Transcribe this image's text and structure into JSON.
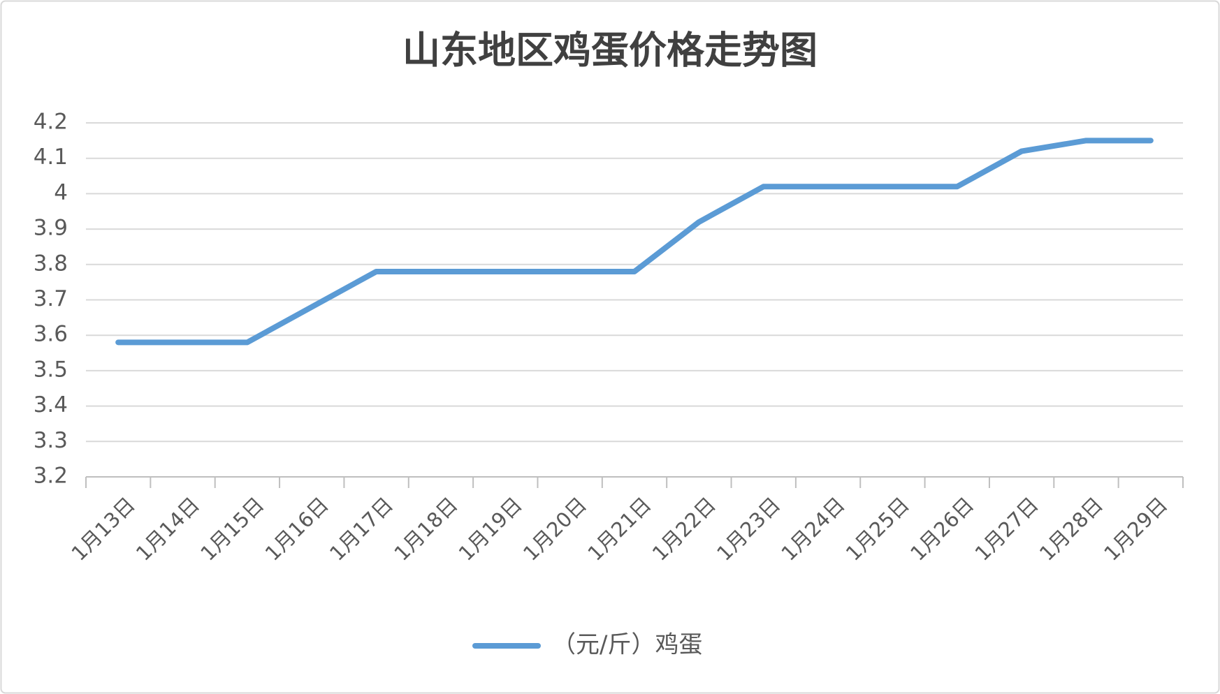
{
  "chart_data": {
    "type": "line",
    "title": "山东地区鸡蛋价格走势图",
    "categories": [
      "1月13日",
      "1月14日",
      "1月15日",
      "1月16日",
      "1月17日",
      "1月18日",
      "1月19日",
      "1月20日",
      "1月21日",
      "1月22日",
      "1月23日",
      "1月24日",
      "1月25日",
      "1月26日",
      "1月27日",
      "1月28日",
      "1月29日"
    ],
    "series": [
      {
        "name": "（元/斤）鸡蛋",
        "color": "#5b9bd5",
        "values": [
          3.58,
          3.58,
          3.58,
          3.68,
          3.78,
          3.78,
          3.78,
          3.78,
          3.78,
          3.92,
          4.02,
          4.02,
          4.02,
          4.02,
          4.12,
          4.15,
          4.15
        ]
      }
    ],
    "ylim": [
      3.2,
      4.2
    ],
    "yticks": [
      3.2,
      3.3,
      3.4,
      3.5,
      3.6,
      3.7,
      3.8,
      3.9,
      4,
      4.1,
      4.2
    ],
    "grid": true,
    "legend": "bottom"
  }
}
